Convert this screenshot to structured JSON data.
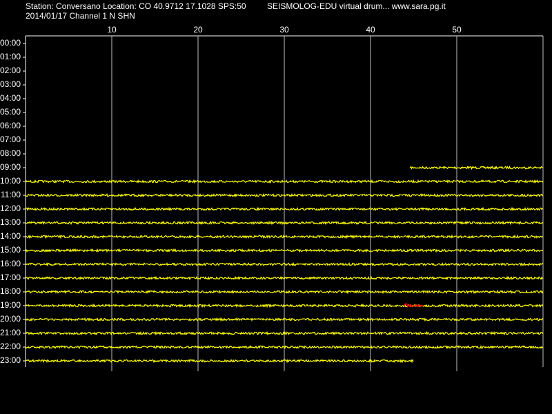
{
  "chart_data": {
    "type": "drum",
    "title": "Station: Conversano Location: CO 40.9712 17.1028 SPS:50",
    "subtitle": "2014/01/17  Channel 1 N SHN",
    "header_right": "SEISMOLOG-EDU virtual drum... www.sara.pg.it",
    "categories": [
      "00:00",
      "01:00",
      "02:00",
      "03:00",
      "04:00",
      "05:00",
      "06:00",
      "07:00",
      "08:00",
      "09:00",
      "10:00",
      "11:00",
      "12:00",
      "13:00",
      "14:00",
      "15:00",
      "16:00",
      "17:00",
      "18:00",
      "19:00",
      "20:00",
      "21:00",
      "22:00",
      "23:00"
    ],
    "start": [
      null,
      null,
      null,
      null,
      null,
      null,
      null,
      null,
      null,
      44.6,
      0,
      0,
      0,
      0,
      0,
      0,
      0,
      0,
      0,
      0,
      0,
      0,
      0,
      0
    ],
    "end": [
      null,
      null,
      null,
      null,
      null,
      null,
      null,
      null,
      null,
      60,
      60,
      60,
      60,
      60,
      60,
      60,
      60,
      60,
      60,
      60,
      60,
      60,
      60,
      45
    ],
    "color": "#ffff00",
    "event": {
      "category": "19:00",
      "start": 43.9,
      "end": 46.2,
      "color": "#ff0000"
    },
    "xlim": [
      0,
      60
    ],
    "xticks": [
      10,
      20,
      30,
      40,
      50
    ],
    "grid": true
  }
}
